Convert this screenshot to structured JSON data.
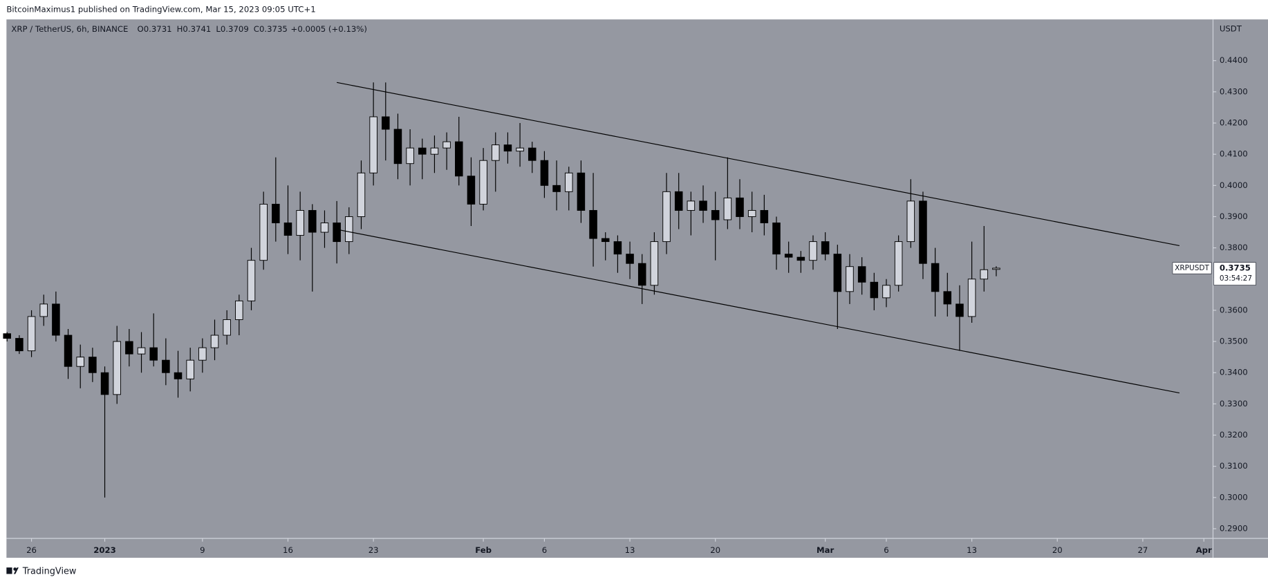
{
  "header": {
    "publisher": "BitcoinMaximus1 published on TradingView.com, Mar 15, 2023 09:05 UTC+1",
    "symbol": "XRP / TetherUS, 6h, BINANCE",
    "ohlc": [
      {
        "key": "O",
        "value": 0.3731
      },
      {
        "key": "H",
        "value": 0.3741
      },
      {
        "key": "L",
        "value": 0.3709
      },
      {
        "key": "C",
        "value": 0.3735
      }
    ],
    "change": "+0.0005 (+0.13%)"
  },
  "footer": {
    "brand": "TradingView"
  },
  "chart_data": {
    "type": "candlestick",
    "grid": false,
    "up_color": "#d1d4dc",
    "down_color": "#000000",
    "line_color": "#000000",
    "y_unit": "USDT",
    "x": [
      -2,
      -1,
      0,
      1,
      2,
      3,
      4,
      5,
      6,
      7,
      8,
      9,
      10,
      11,
      12,
      13,
      14,
      15,
      16,
      17,
      18,
      19,
      20,
      21,
      22,
      23,
      24,
      25,
      26,
      27,
      28,
      29,
      30,
      31,
      32,
      33,
      34,
      35,
      36,
      37,
      38,
      39,
      40,
      41,
      42,
      43,
      44,
      45,
      46,
      47,
      48,
      49,
      50,
      51,
      52,
      53,
      54,
      55,
      56,
      57,
      58,
      59,
      60,
      61,
      62,
      63,
      64,
      65,
      66,
      67,
      68,
      69,
      70,
      71,
      72,
      73,
      74,
      75,
      76,
      77,
      78,
      79
    ],
    "open": [
      0.3525,
      0.351,
      0.347,
      0.358,
      0.362,
      0.352,
      0.342,
      0.345,
      0.34,
      0.333,
      0.35,
      0.346,
      0.348,
      0.344,
      0.34,
      0.338,
      0.344,
      0.348,
      0.352,
      0.357,
      0.363,
      0.376,
      0.394,
      0.388,
      0.384,
      0.392,
      0.385,
      0.388,
      0.382,
      0.39,
      0.404,
      0.422,
      0.418,
      0.407,
      0.412,
      0.41,
      0.412,
      0.414,
      0.403,
      0.394,
      0.408,
      0.413,
      0.411,
      0.412,
      0.408,
      0.4,
      0.398,
      0.404,
      0.392,
      0.383,
      0.382,
      0.378,
      0.375,
      0.368,
      0.382,
      0.398,
      0.392,
      0.395,
      0.392,
      0.389,
      0.396,
      0.39,
      0.392,
      0.388,
      0.378,
      0.377,
      0.376,
      0.382,
      0.378,
      0.366,
      0.374,
      0.369,
      0.364,
      0.368,
      0.382,
      0.395,
      0.375,
      0.366,
      0.362,
      0.358,
      0.37,
      0.3731
    ],
    "high": [
      0.353,
      0.352,
      0.36,
      0.365,
      0.366,
      0.354,
      0.349,
      0.348,
      0.342,
      0.355,
      0.354,
      0.353,
      0.359,
      0.351,
      0.347,
      0.348,
      0.351,
      0.357,
      0.36,
      0.365,
      0.38,
      0.398,
      0.409,
      0.4,
      0.398,
      0.394,
      0.392,
      0.395,
      0.393,
      0.408,
      0.433,
      0.433,
      0.423,
      0.418,
      0.415,
      0.416,
      0.417,
      0.422,
      0.409,
      0.412,
      0.417,
      0.417,
      0.42,
      0.414,
      0.411,
      0.408,
      0.406,
      0.408,
      0.404,
      0.385,
      0.384,
      0.382,
      0.378,
      0.385,
      0.404,
      0.404,
      0.398,
      0.4,
      0.398,
      0.409,
      0.402,
      0.398,
      0.397,
      0.39,
      0.382,
      0.379,
      0.384,
      0.385,
      0.381,
      0.378,
      0.377,
      0.372,
      0.37,
      0.384,
      0.402,
      0.398,
      0.38,
      0.372,
      0.368,
      0.382,
      0.387,
      0.3741
    ],
    "low": [
      0.35,
      0.346,
      0.345,
      0.355,
      0.35,
      0.338,
      0.335,
      0.337,
      0.3,
      0.33,
      0.342,
      0.34,
      0.342,
      0.336,
      0.332,
      0.334,
      0.34,
      0.344,
      0.349,
      0.352,
      0.36,
      0.373,
      0.382,
      0.378,
      0.376,
      0.366,
      0.38,
      0.375,
      0.378,
      0.386,
      0.4,
      0.408,
      0.402,
      0.4,
      0.402,
      0.404,
      0.405,
      0.4,
      0.387,
      0.392,
      0.398,
      0.407,
      0.406,
      0.404,
      0.396,
      0.392,
      0.392,
      0.388,
      0.374,
      0.376,
      0.372,
      0.37,
      0.362,
      0.365,
      0.378,
      0.386,
      0.384,
      0.388,
      0.376,
      0.386,
      0.386,
      0.385,
      0.384,
      0.373,
      0.372,
      0.372,
      0.373,
      0.376,
      0.354,
      0.362,
      0.365,
      0.36,
      0.361,
      0.366,
      0.38,
      0.37,
      0.358,
      0.358,
      0.347,
      0.356,
      0.366,
      0.3709
    ],
    "close": [
      0.351,
      0.347,
      0.358,
      0.362,
      0.352,
      0.342,
      0.345,
      0.34,
      0.333,
      0.35,
      0.346,
      0.348,
      0.344,
      0.34,
      0.338,
      0.344,
      0.348,
      0.352,
      0.357,
      0.363,
      0.376,
      0.394,
      0.388,
      0.384,
      0.392,
      0.385,
      0.388,
      0.382,
      0.39,
      0.404,
      0.422,
      0.418,
      0.407,
      0.412,
      0.41,
      0.412,
      0.414,
      0.403,
      0.394,
      0.408,
      0.413,
      0.411,
      0.412,
      0.408,
      0.4,
      0.398,
      0.404,
      0.392,
      0.383,
      0.382,
      0.378,
      0.375,
      0.368,
      0.382,
      0.398,
      0.392,
      0.395,
      0.392,
      0.389,
      0.396,
      0.39,
      0.392,
      0.388,
      0.378,
      0.377,
      0.376,
      0.382,
      0.378,
      0.366,
      0.374,
      0.369,
      0.364,
      0.368,
      0.382,
      0.395,
      0.375,
      0.366,
      0.362,
      0.358,
      0.37,
      0.373,
      0.3735
    ],
    "channel": [
      {
        "x": [
          25,
          94
        ],
        "y": [
          0.433,
          0.3807
        ]
      },
      {
        "x": [
          25,
          94
        ],
        "y": [
          0.3859,
          0.3335
        ]
      }
    ],
    "xlim": [
      -2.05,
      96.75
    ],
    "xticks": [
      {
        "value": 0,
        "label": "26"
      },
      {
        "value": 6,
        "label": "2023"
      },
      {
        "value": 14,
        "label": "9"
      },
      {
        "value": 21,
        "label": "16"
      },
      {
        "value": 28,
        "label": "23"
      },
      {
        "value": 37,
        "label": "Feb"
      },
      {
        "value": 42,
        "label": "6"
      },
      {
        "value": 49,
        "label": "13"
      },
      {
        "value": 56,
        "label": "20"
      },
      {
        "value": 65,
        "label": "Mar"
      },
      {
        "value": 70,
        "label": "6"
      },
      {
        "value": 77,
        "label": "13"
      },
      {
        "value": 84,
        "label": "20"
      },
      {
        "value": 91,
        "label": "27"
      },
      {
        "value": 96,
        "label": "Apr"
      }
    ],
    "ylim": [
      0.2869,
      0.4532
    ],
    "yticks": [
      {
        "value": 0.29,
        "label": "0.2900"
      },
      {
        "value": 0.3,
        "label": "0.3000"
      },
      {
        "value": 0.31,
        "label": "0.3100"
      },
      {
        "value": 0.32,
        "label": "0.3200"
      },
      {
        "value": 0.33,
        "label": "0.3300"
      },
      {
        "value": 0.34,
        "label": "0.3400"
      },
      {
        "value": 0.35,
        "label": "0.3500"
      },
      {
        "value": 0.36,
        "label": "0.3600"
      },
      {
        "value": 0.37,
        "label": "0.3700"
      },
      {
        "value": 0.38,
        "label": "0.3800"
      },
      {
        "value": 0.39,
        "label": "0.3900"
      },
      {
        "value": 0.4,
        "label": "0.4000"
      },
      {
        "value": 0.41,
        "label": "0.4100"
      },
      {
        "value": 0.42,
        "label": "0.4200"
      },
      {
        "value": 0.43,
        "label": "0.4300"
      },
      {
        "value": 0.44,
        "label": "0.4400"
      }
    ],
    "last_price": {
      "symbol": "XRPUSDT",
      "value": 0.3735,
      "countdown": "03:54:27"
    }
  }
}
